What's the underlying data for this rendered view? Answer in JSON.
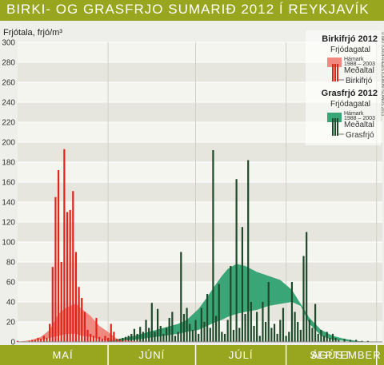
{
  "title": "BIRKI- OG GRASFRJO SUMARIÐ 2012 Í REYKJAVÍK",
  "credit": "© NÁTTÚRUFRÆÐISTOFNUN ÍSLANDS 2013",
  "chart_data": {
    "type": "bar",
    "ylabel": "Frjótala, frjó/m³",
    "ylim": [
      0,
      300
    ],
    "yticks": [
      0,
      20,
      40,
      60,
      80,
      100,
      120,
      140,
      160,
      180,
      200,
      220,
      240,
      260,
      280,
      300
    ],
    "x_range_days": [
      0,
      125
    ],
    "months": [
      {
        "label": "MAÍ",
        "start": 0,
        "end": 31
      },
      {
        "label": "JÚNÍ",
        "start": 31,
        "end": 61
      },
      {
        "label": "JÚLÍ",
        "start": 61,
        "end": 92
      },
      {
        "label": "ÁGÚST",
        "start": 92,
        "end": 123
      },
      {
        "label": "SEPTEMBER",
        "start": 123,
        "end": 125
      }
    ],
    "legend": {
      "birch_title": "Birkifrjó 2012",
      "birch_subtitle": "Frjódagatal",
      "birch_max_label": "Hámark",
      "birch_range_label": "1988 – 2003",
      "birch_mean_label": "Meðaltal",
      "birch_bar_label": "Birkifrjó",
      "grass_title": "Grasfrjó 2012",
      "grass_subtitle": "Frjódagatal",
      "grass_max_label": "Hámark",
      "grass_range_label": "1988 – 2003",
      "grass_mean_label": "Meðaltal",
      "grass_bar_label": "Grasfrjó",
      "position": "top-right"
    },
    "colors": {
      "birch_bar": "#e2231a",
      "birch_band": "#f08a80",
      "grass_bar": "#1e4a2a",
      "grass_band": "#3aa577",
      "title_bar": "#97a51f",
      "month_bar": "#97a51f"
    },
    "series": [
      {
        "name": "Birkifrjó",
        "x": [
          0,
          4,
          5,
          6,
          7,
          8,
          9,
          10,
          11,
          12,
          13,
          14,
          15,
          16,
          17,
          18,
          19,
          20,
          21,
          22,
          23,
          24,
          25,
          26,
          27,
          28,
          29,
          30,
          31,
          32,
          33,
          34,
          35,
          36,
          37,
          38,
          39,
          40,
          41
        ],
        "values": [
          1,
          1,
          2,
          2,
          4,
          3,
          6,
          4,
          18,
          75,
          145,
          172,
          80,
          193,
          130,
          132,
          151,
          90,
          55,
          44,
          30,
          12,
          8,
          6,
          24,
          5,
          3,
          6,
          4,
          18,
          10,
          3,
          2,
          1,
          2,
          1,
          1,
          1,
          1
        ]
      },
      {
        "name": "Birkifrjó Hámark 1988 – 2003",
        "x": [
          0,
          5,
          8,
          11,
          14,
          17,
          20,
          22,
          25,
          28,
          31,
          34,
          37
        ],
        "high": [
          0,
          2,
          5,
          12,
          28,
          35,
          38,
          33,
          26,
          16,
          10,
          3,
          0
        ],
        "low": [
          0,
          1,
          2,
          4,
          6,
          8,
          8,
          6,
          5,
          3,
          1,
          0,
          0
        ]
      },
      {
        "name": "Grasfrjó",
        "x": [
          29,
          30,
          31,
          32,
          33,
          34,
          35,
          36,
          37,
          38,
          39,
          40,
          41,
          42,
          43,
          44,
          45,
          46,
          47,
          48,
          49,
          50,
          51,
          52,
          53,
          54,
          55,
          56,
          57,
          58,
          59,
          60,
          61,
          62,
          63,
          64,
          65,
          66,
          67,
          68,
          69,
          70,
          71,
          72,
          73,
          74,
          75,
          76,
          77,
          78,
          79,
          80,
          81,
          82,
          83,
          84,
          85,
          86,
          87,
          88,
          89,
          90,
          91,
          92,
          93,
          94,
          95,
          96,
          97,
          98,
          99,
          100,
          101,
          102,
          103,
          104,
          105,
          106,
          107,
          108,
          109,
          110,
          112,
          114,
          116,
          118,
          120
        ],
        "values": [
          2,
          3,
          4,
          3,
          2,
          2,
          3,
          4,
          5,
          6,
          8,
          13,
          8,
          15,
          10,
          22,
          14,
          39,
          10,
          33,
          16,
          8,
          14,
          24,
          30,
          6,
          10,
          90,
          28,
          34,
          18,
          12,
          22,
          8,
          34,
          20,
          48,
          14,
          192,
          26,
          58,
          10,
          8,
          22,
          76,
          12,
          163,
          14,
          115,
          28,
          182,
          40,
          16,
          30,
          6,
          40,
          20,
          60,
          14,
          18,
          8,
          22,
          34,
          6,
          10,
          60,
          30,
          20,
          12,
          86,
          110,
          22,
          14,
          38,
          8,
          12,
          6,
          10,
          4,
          8,
          4,
          2,
          3,
          2,
          2,
          1,
          1
        ]
      },
      {
        "name": "Grasfrjó Hámark 1988 – 2003",
        "x": [
          30,
          35,
          40,
          45,
          50,
          55,
          58,
          62,
          65,
          68,
          70,
          72,
          75,
          78,
          82,
          86,
          90,
          94,
          97,
          100,
          104,
          108,
          112,
          116,
          120
        ],
        "high": [
          0,
          3,
          6,
          10,
          14,
          18,
          22,
          33,
          45,
          58,
          66,
          73,
          78,
          76,
          70,
          66,
          62,
          52,
          38,
          24,
          12,
          6,
          3,
          1,
          0
        ],
        "low": [
          0,
          1,
          2,
          4,
          6,
          8,
          10,
          12,
          16,
          20,
          22,
          25,
          28,
          30,
          32,
          36,
          38,
          40,
          36,
          18,
          6,
          2,
          1,
          0,
          0
        ]
      }
    ]
  }
}
